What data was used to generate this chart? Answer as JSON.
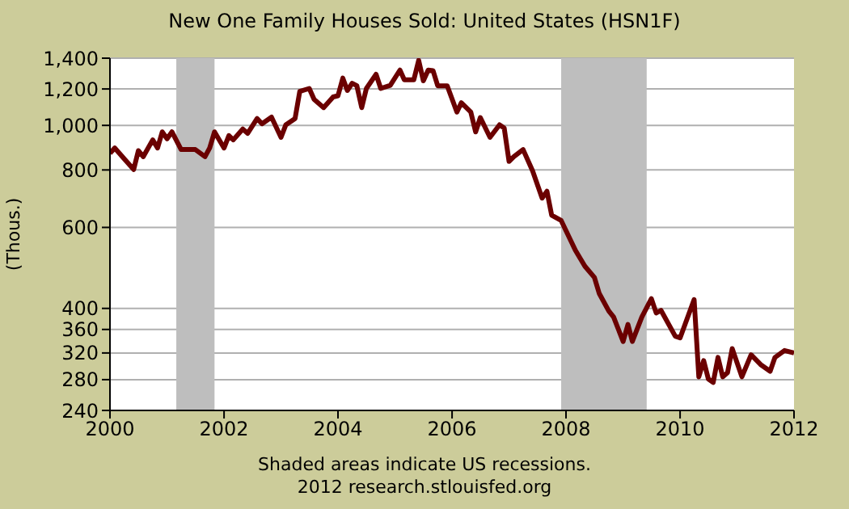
{
  "chart_data": {
    "type": "line",
    "title": "New One Family Houses Sold: United States (HSN1F)",
    "ylabel": "(Thous.)",
    "annotations": [
      "Shaded areas indicate US recessions.",
      "2012 research.stlouisfed.org"
    ],
    "x": [
      "2000-01",
      "2000-02",
      "2000-04",
      "2000-06",
      "2000-07",
      "2000-08",
      "2000-10",
      "2000-11",
      "2000-12",
      "2001-01",
      "2001-02",
      "2001-04",
      "2001-07",
      "2001-09",
      "2001-10",
      "2001-11",
      "2002-01",
      "2002-02",
      "2002-03",
      "2002-05",
      "2002-06",
      "2002-08",
      "2002-09",
      "2002-11",
      "2003-01",
      "2003-02",
      "2003-04",
      "2003-05",
      "2003-07",
      "2003-08",
      "2003-10",
      "2003-12",
      "2004-01",
      "2004-02",
      "2004-03",
      "2004-04",
      "2004-05",
      "2004-06",
      "2004-07",
      "2004-09",
      "2004-10",
      "2004-12",
      "2005-02",
      "2005-03",
      "2005-05",
      "2005-06",
      "2005-07",
      "2005-08",
      "2005-09",
      "2005-10",
      "2005-12",
      "2006-02",
      "2006-03",
      "2006-05",
      "2006-06",
      "2006-07",
      "2006-09",
      "2006-11",
      "2006-12",
      "2007-01",
      "2007-02",
      "2007-04",
      "2007-06",
      "2007-08",
      "2007-09",
      "2007-10",
      "2007-12",
      "2008-03",
      "2008-05",
      "2008-07",
      "2008-08",
      "2008-10",
      "2008-11",
      "2009-01",
      "2009-02",
      "2009-03",
      "2009-05",
      "2009-07",
      "2009-08",
      "2009-09",
      "2009-12",
      "2010-01",
      "2010-04",
      "2010-05",
      "2010-06",
      "2010-07",
      "2010-08",
      "2010-09",
      "2010-10",
      "2010-11",
      "2010-12",
      "2011-02",
      "2011-04",
      "2011-06",
      "2011-08",
      "2011-09",
      "2011-11",
      "2012-01"
    ],
    "series": [
      {
        "color": "#6b0000",
        "values": [
          870,
          893,
          846,
          802,
          881,
          855,
          930,
          893,
          968,
          935,
          968,
          886,
          886,
          855,
          893,
          968,
          893,
          950,
          930,
          982,
          961,
          1035,
          1008,
          1042,
          942,
          1003,
          1035,
          1185,
          1203,
          1139,
          1093,
          1153,
          1160,
          1267,
          1191,
          1235,
          1219,
          1093,
          1203,
          1291,
          1203,
          1222,
          1319,
          1256,
          1256,
          1385,
          1250,
          1319,
          1315,
          1219,
          1219,
          1069,
          1120,
          1069,
          968,
          1040,
          942,
          1003,
          987,
          835,
          855,
          886,
          796,
          695,
          719,
          638,
          621,
          535,
          494,
          467,
          431,
          395,
          383,
          339,
          369,
          339,
          383,
          420,
          391,
          396,
          348,
          345,
          418,
          284,
          308,
          281,
          276,
          313,
          284,
          290,
          327,
          284,
          317,
          302,
          292,
          313,
          324,
          320
        ]
      }
    ],
    "xlim": [
      "2000-01",
      "2012-01"
    ],
    "xticks": [
      {
        "value": "2000-01",
        "label": "2000"
      },
      {
        "value": "2002-01",
        "label": "2002"
      },
      {
        "value": "2004-01",
        "label": "2004"
      },
      {
        "value": "2006-01",
        "label": "2006"
      },
      {
        "value": "2008-01",
        "label": "2008"
      },
      {
        "value": "2010-01",
        "label": "2010"
      },
      {
        "value": "2012-01",
        "label": "2012"
      }
    ],
    "ylim": [
      240,
      1400
    ],
    "yticks": [
      240,
      280,
      320,
      360,
      400,
      600,
      800,
      {
        "value": 1000,
        "label": "1,000"
      },
      {
        "value": 1200,
        "label": "1,200"
      },
      {
        "value": 1400,
        "label": "1,400"
      }
    ],
    "log": "y",
    "grid": "y",
    "marker": "none",
    "line_style": "solid",
    "bands": [
      {
        "axis": "x",
        "from": "2001-03",
        "to": "2001-11",
        "color": "#bebebe"
      },
      {
        "axis": "x",
        "from": "2007-12",
        "to": "2009-06",
        "color": "#bebebe"
      }
    ]
  }
}
